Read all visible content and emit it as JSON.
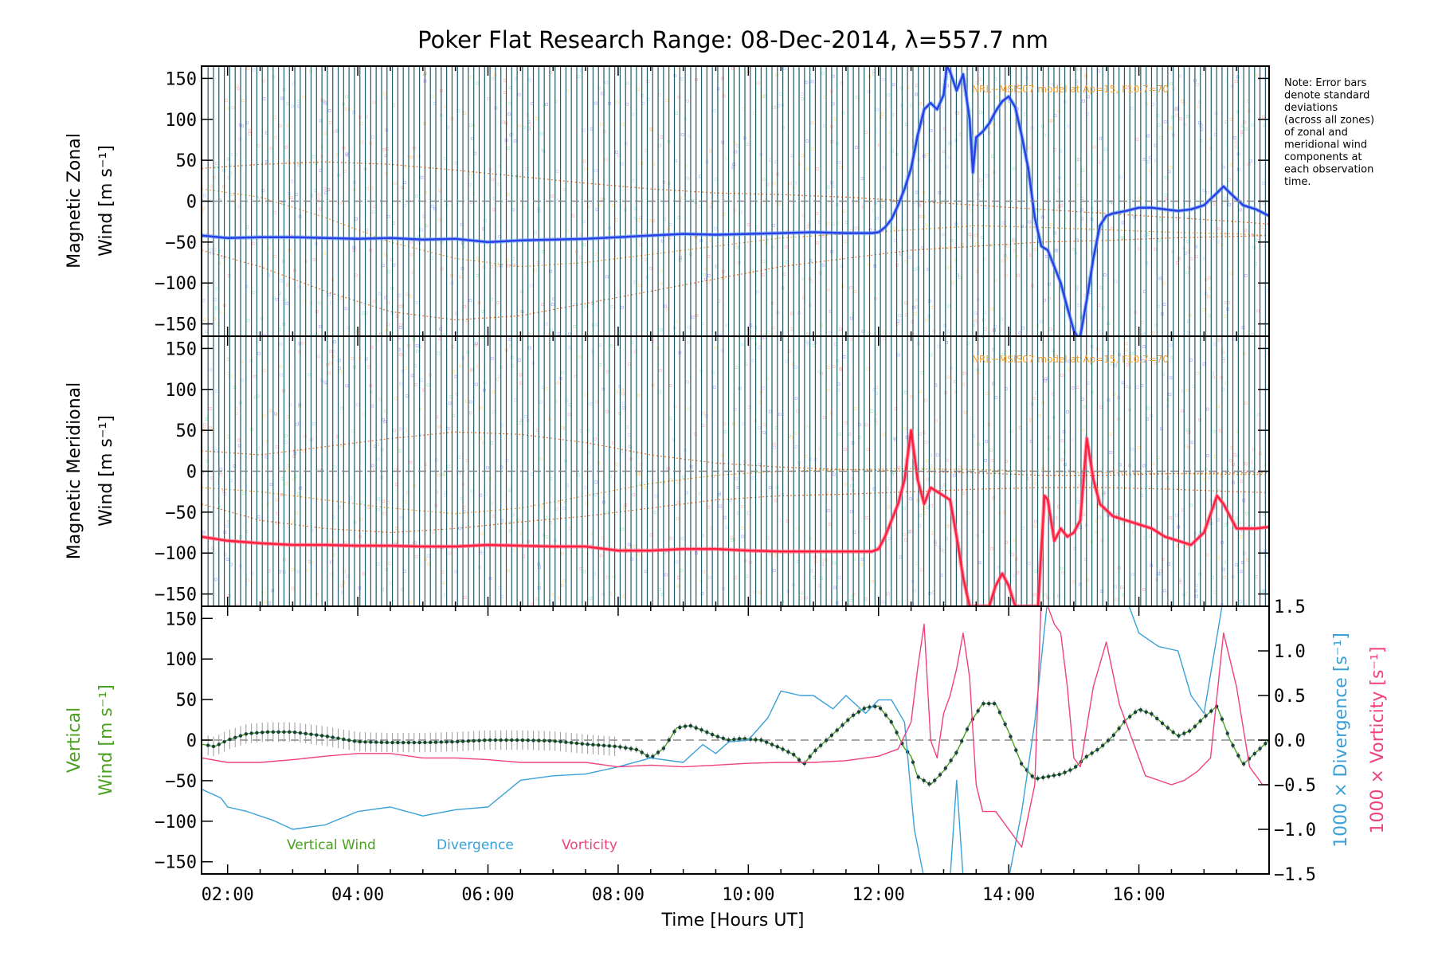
{
  "chart_data": {
    "title": "Poker Flat Research Range: 08-Dec-2014, λ=557.7 nm",
    "xlabel": "Time [Hours UT]",
    "x_ticks": [
      "02:00",
      "04:00",
      "06:00",
      "08:00",
      "10:00",
      "12:00",
      "14:00",
      "16:00"
    ],
    "x_range_hours": [
      1.6,
      18.0
    ],
    "note": [
      "Note: Error bars",
      "denote standard",
      "deviations",
      "(across all zones)",
      "of zonal and",
      "meridional wind",
      "components at",
      "each observation",
      "time."
    ],
    "panels": [
      {
        "id": "zonal",
        "type": "line",
        "ylabel_line1": "Magnetic Zonal",
        "ylabel_line2": "Wind [m s⁻¹]",
        "ylim": [
          -165,
          165
        ],
        "yticks": [
          "150",
          "100",
          "50",
          "0",
          "−50",
          "−100",
          "−150"
        ],
        "model_label": "NRL−MSIS07 model at Ap=15, F10.7=70",
        "series": [
          {
            "color": "#2a3fe8",
            "color_light": "#5fa0f0",
            "x": [
              1.6,
              2.0,
              2.5,
              3.0,
              3.5,
              4.0,
              4.5,
              5.0,
              5.5,
              6.0,
              6.5,
              7.0,
              7.5,
              8.0,
              8.5,
              9.0,
              9.5,
              10.0,
              10.5,
              11.0,
              11.5,
              11.9,
              12.0,
              12.1,
              12.2,
              12.3,
              12.4,
              12.5,
              12.6,
              12.7,
              12.8,
              12.9,
              13.0,
              13.05,
              13.1,
              13.2,
              13.3,
              13.4,
              13.45,
              13.5,
              13.6,
              13.7,
              13.8,
              13.9,
              14.0,
              14.1,
              14.2,
              14.3,
              14.4,
              14.5,
              14.6,
              14.7,
              14.8,
              14.9,
              15.0,
              15.05,
              15.1,
              15.2,
              15.3,
              15.4,
              15.5,
              15.6,
              15.8,
              16.0,
              16.2,
              16.4,
              16.6,
              16.8,
              17.0,
              17.2,
              17.3,
              17.4,
              17.6,
              17.8,
              18.0
            ],
            "values": [
              -42,
              -45,
              -44,
              -44,
              -45,
              -46,
              -45,
              -47,
              -46,
              -50,
              -48,
              -47,
              -46,
              -44,
              -42,
              -40,
              -41,
              -40,
              -39,
              -38,
              -39,
              -39,
              -38,
              -32,
              -22,
              -5,
              15,
              40,
              80,
              112,
              120,
              112,
              130,
              165,
              158,
              135,
              155,
              100,
              35,
              78,
              85,
              95,
              110,
              122,
              128,
              115,
              80,
              40,
              -20,
              -55,
              -60,
              -80,
              -100,
              -130,
              -158,
              -165,
              -165,
              -120,
              -70,
              -30,
              -18,
              -15,
              -12,
              -8,
              -8,
              -10,
              -12,
              -10,
              -5,
              10,
              18,
              10,
              -5,
              -10,
              -18
            ]
          }
        ],
        "model_curves_x": [
          1.6,
          2.5,
          3.5,
          4.5,
          5.5,
          6.5,
          7.5,
          8.5,
          9.5,
          10.5,
          11.5,
          12.5,
          13.5,
          14.5,
          15.5,
          16.5,
          17.5,
          18.0
        ],
        "model_curves": [
          [
            40,
            45,
            48,
            45,
            38,
            30,
            22,
            15,
            10,
            8,
            5,
            0,
            -5,
            -10,
            -15,
            -20,
            -25,
            -28
          ],
          [
            15,
            5,
            -20,
            -50,
            -70,
            -80,
            -75,
            -65,
            -55,
            -45,
            -40,
            -35,
            -30,
            -32,
            -35,
            -38,
            -40,
            -42
          ],
          [
            -60,
            -80,
            -110,
            -135,
            -145,
            -140,
            -125,
            -110,
            -95,
            -80,
            -70,
            -60,
            -55,
            -50,
            -48,
            -45,
            -43,
            -42
          ]
        ]
      },
      {
        "id": "meridional",
        "type": "line",
        "ylabel_line1": "Magnetic Meridional",
        "ylabel_line2": "Wind [m s⁻¹]",
        "ylim": [
          -165,
          165
        ],
        "yticks": [
          "150",
          "100",
          "50",
          "0",
          "−50",
          "−100",
          "−150"
        ],
        "model_label": "NRL−MSIS07 model at Ap=15, F10.7=70",
        "series": [
          {
            "color": "#ff2040",
            "color_light": "#ff6080",
            "x": [
              1.6,
              2.0,
              2.5,
              3.0,
              3.5,
              4.0,
              4.5,
              5.0,
              5.5,
              6.0,
              6.5,
              7.0,
              7.5,
              8.0,
              8.5,
              9.0,
              9.5,
              10.0,
              10.5,
              11.0,
              11.5,
              11.9,
              12.0,
              12.1,
              12.2,
              12.3,
              12.4,
              12.5,
              12.6,
              12.7,
              12.8,
              12.9,
              13.0,
              13.1,
              13.2,
              13.3,
              13.4,
              13.45,
              13.55,
              13.7,
              13.8,
              13.9,
              14.0,
              14.1,
              14.15,
              14.25,
              14.35,
              14.45,
              14.55,
              14.6,
              14.7,
              14.8,
              14.9,
              15.0,
              15.1,
              15.2,
              15.3,
              15.4,
              15.6,
              15.8,
              16.0,
              16.2,
              16.4,
              16.6,
              16.8,
              17.0,
              17.2,
              17.3,
              17.5,
              17.8,
              18.0
            ],
            "values": [
              -80,
              -85,
              -88,
              -90,
              -90,
              -91,
              -91,
              -92,
              -92,
              -90,
              -91,
              -92,
              -92,
              -97,
              -97,
              -95,
              -95,
              -97,
              -98,
              -98,
              -98,
              -98,
              -95,
              -80,
              -60,
              -40,
              -10,
              50,
              -10,
              -40,
              -20,
              -25,
              -30,
              -35,
              -80,
              -130,
              -165,
              -165,
              -165,
              -165,
              -140,
              -125,
              -140,
              -165,
              -165,
              -165,
              -165,
              -165,
              -30,
              -35,
              -85,
              -70,
              -80,
              -75,
              -60,
              40,
              -10,
              -40,
              -55,
              -60,
              -65,
              -70,
              -80,
              -85,
              -90,
              -75,
              -30,
              -40,
              -70,
              -70,
              -68
            ]
          }
        ],
        "model_curves_x": [
          1.6,
          2.5,
          3.5,
          4.5,
          5.5,
          6.5,
          7.5,
          8.5,
          9.5,
          10.5,
          11.5,
          12.5,
          13.5,
          14.5,
          15.5,
          16.5,
          17.5,
          18.0
        ],
        "model_curves": [
          [
            25,
            20,
            30,
            40,
            48,
            45,
            35,
            20,
            10,
            5,
            2,
            0,
            -2,
            -5,
            -5,
            -3,
            -2,
            -2
          ],
          [
            -20,
            -25,
            -35,
            -45,
            -52,
            -45,
            -30,
            -15,
            -5,
            0,
            2,
            3,
            2,
            0,
            -2,
            -3,
            -4,
            -4
          ],
          [
            -40,
            -60,
            -70,
            -75,
            -70,
            -62,
            -55,
            -45,
            -35,
            -30,
            -28,
            -25,
            -22,
            -20,
            -20,
            -22,
            -25,
            -26
          ]
        ]
      },
      {
        "id": "vertical",
        "type": "line",
        "ylabel_line1": "Vertical",
        "ylabel_line2": "Wind [m s⁻¹]",
        "ylim": [
          -165,
          165
        ],
        "yticks": [
          "150",
          "100",
          "50",
          "0",
          "−50",
          "−100",
          "−150"
        ],
        "right_ylim": [
          -1.5,
          1.5
        ],
        "right_yticks": [
          "1.5",
          "1.0",
          "0.5",
          "0.0",
          "−0.5",
          "−1.0",
          "−1.5"
        ],
        "right_ylabel_div": "1000 × Divergence [s⁻¹]",
        "right_ylabel_vort": "1000 × Vorticity [s⁻¹]",
        "series": [
          {
            "name": "Vertical Wind",
            "color": "#4aa020",
            "axis": "left",
            "x": [
              1.6,
              1.8,
              2.0,
              2.3,
              2.6,
              3.0,
              3.5,
              4.0,
              4.5,
              5.0,
              5.5,
              6.0,
              6.5,
              7.0,
              7.5,
              8.0,
              8.3,
              8.5,
              8.7,
              8.9,
              9.1,
              9.3,
              9.5,
              9.7,
              9.9,
              10.2,
              10.5,
              10.7,
              10.85,
              11.0,
              11.2,
              11.4,
              11.6,
              11.8,
              12.0,
              12.2,
              12.4,
              12.5,
              12.6,
              12.8,
              13.0,
              13.2,
              13.4,
              13.6,
              13.8,
              14.0,
              14.2,
              14.4,
              14.6,
              14.8,
              15.0,
              15.2,
              15.4,
              15.6,
              15.8,
              16.0,
              16.2,
              16.4,
              16.6,
              16.8,
              17.0,
              17.2,
              17.4,
              17.6,
              17.8,
              18.0
            ],
            "values": [
              -5,
              -8,
              0,
              8,
              10,
              10,
              5,
              -2,
              -3,
              -3,
              -2,
              0,
              0,
              -1,
              -5,
              -8,
              -12,
              -22,
              -10,
              15,
              18,
              12,
              5,
              0,
              2,
              0,
              -10,
              -18,
              -30,
              -15,
              0,
              15,
              30,
              40,
              42,
              22,
              -10,
              -20,
              -45,
              -55,
              -38,
              -15,
              20,
              45,
              45,
              10,
              -30,
              -48,
              -45,
              -42,
              -35,
              -20,
              -10,
              5,
              25,
              38,
              32,
              18,
              5,
              12,
              28,
              42,
              0,
              -30,
              -15,
              0
            ]
          },
          {
            "name": "Divergence",
            "color": "#3aa0d8",
            "axis": "right",
            "x": [
              1.6,
              1.9,
              2.0,
              2.3,
              2.7,
              3.0,
              3.5,
              4.0,
              4.5,
              5.0,
              5.5,
              6.0,
              6.5,
              7.0,
              7.5,
              8.0,
              8.5,
              9.0,
              9.3,
              9.5,
              9.7,
              10.0,
              10.3,
              10.5,
              10.8,
              11.0,
              11.3,
              11.5,
              11.8,
              12.0,
              12.2,
              12.4,
              12.55,
              12.7,
              12.9,
              13.1,
              13.2,
              13.3,
              13.4,
              13.6,
              13.8,
              14.0,
              14.2,
              14.4,
              14.6,
              14.8,
              15.0,
              15.2,
              15.4,
              15.6,
              15.8,
              16.0,
              16.3,
              16.6,
              16.8,
              17.0,
              17.3,
              17.5,
              17.7,
              18.0
            ],
            "values": [
              -0.55,
              -0.65,
              -0.75,
              -0.8,
              -0.9,
              -1.0,
              -0.95,
              -0.8,
              -0.75,
              -0.85,
              -0.78,
              -0.75,
              -0.45,
              -0.4,
              -0.38,
              -0.3,
              -0.2,
              -0.25,
              -0.05,
              -0.15,
              -0.02,
              0.0,
              0.25,
              0.55,
              0.5,
              0.5,
              0.35,
              0.5,
              0.3,
              0.45,
              0.45,
              0.2,
              -1.0,
              -1.55,
              -1.55,
              -1.55,
              -0.45,
              -1.55,
              -1.55,
              -1.55,
              -1.55,
              -1.55,
              -0.8,
              0.2,
              1.6,
              1.6,
              1.6,
              1.6,
              1.6,
              1.6,
              1.6,
              1.2,
              1.05,
              1.0,
              0.5,
              0.3,
              1.6,
              1.6,
              1.55,
              1.6
            ]
          },
          {
            "name": "Vorticity",
            "color": "#f04080",
            "axis": "right",
            "x": [
              1.6,
              2.0,
              2.5,
              3.0,
              3.5,
              4.0,
              4.5,
              5.0,
              5.5,
              6.0,
              6.5,
              7.0,
              7.5,
              8.0,
              8.5,
              9.0,
              9.5,
              10.0,
              10.5,
              11.0,
              11.5,
              12.0,
              12.3,
              12.5,
              12.6,
              12.7,
              12.8,
              12.9,
              13.0,
              13.1,
              13.2,
              13.3,
              13.4,
              13.5,
              13.6,
              13.8,
              14.0,
              14.2,
              14.4,
              14.5,
              14.6,
              14.7,
              14.8,
              14.9,
              15.0,
              15.1,
              15.3,
              15.5,
              15.7,
              15.9,
              16.1,
              16.3,
              16.5,
              16.7,
              16.9,
              17.1,
              17.3,
              17.5,
              17.7,
              17.9,
              18.0
            ],
            "values": [
              -0.2,
              -0.25,
              -0.25,
              -0.22,
              -0.18,
              -0.15,
              -0.15,
              -0.2,
              -0.2,
              -0.22,
              -0.25,
              -0.25,
              -0.25,
              -0.3,
              -0.28,
              -0.3,
              -0.28,
              -0.26,
              -0.25,
              -0.25,
              -0.23,
              -0.18,
              -0.1,
              0.2,
              0.8,
              1.3,
              0.0,
              -0.2,
              0.3,
              0.5,
              0.8,
              1.2,
              0.7,
              -0.5,
              -0.8,
              -0.8,
              -1.0,
              -1.2,
              -0.5,
              1.6,
              1.5,
              1.3,
              1.2,
              0.6,
              -0.2,
              -0.3,
              0.6,
              1.1,
              0.4,
              0.0,
              -0.4,
              -0.45,
              -0.5,
              -0.45,
              -0.35,
              -0.2,
              1.2,
              0.6,
              -0.3,
              -0.5,
              -0.5
            ]
          }
        ],
        "legend": [
          {
            "label": "Vertical Wind",
            "color": "#4aa020"
          },
          {
            "label": "Divergence",
            "color": "#3aa0d8"
          },
          {
            "label": "Vorticity",
            "color": "#f04080"
          }
        ]
      }
    ]
  }
}
